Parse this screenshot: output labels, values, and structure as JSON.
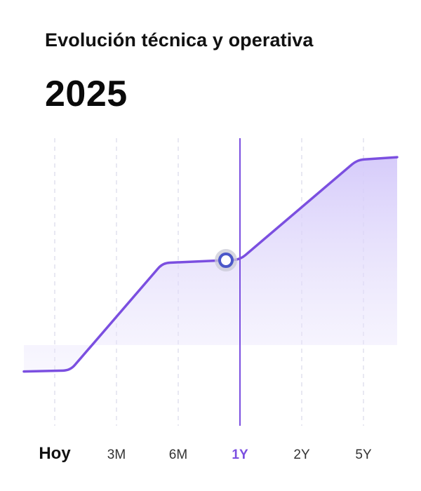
{
  "header": {
    "title": "Evolución técnica y operativa",
    "year": "2025"
  },
  "colors": {
    "line": "#7b4fe0",
    "area_top": "#d9d0fa",
    "marker_ring": "#4b57c9",
    "grid": "#e0e0ee",
    "active_tick": "#7b4fe0"
  },
  "chart_data": {
    "type": "area",
    "x_ticks": [
      "Hoy",
      "3M",
      "6M",
      "1Y",
      "2Y",
      "5Y"
    ],
    "selected_tick": "1Y",
    "series": [
      {
        "values": [
          {
            "x": 0,
            "y": 0
          },
          {
            "x": 0.25,
            "y": 0.02
          },
          {
            "x": 1.75,
            "y": 2.0
          },
          {
            "x": 2.75,
            "y": 2.05
          },
          {
            "x": 3.0,
            "y": 2.06
          },
          {
            "x": 4.9,
            "y": 3.9
          },
          {
            "x": 5.5,
            "y": 3.95
          }
        ]
      }
    ],
    "highlight_point": {
      "x": 2.75,
      "y": 2.05
    },
    "ylim": [
      -1,
      4.3
    ],
    "grid": true
  }
}
